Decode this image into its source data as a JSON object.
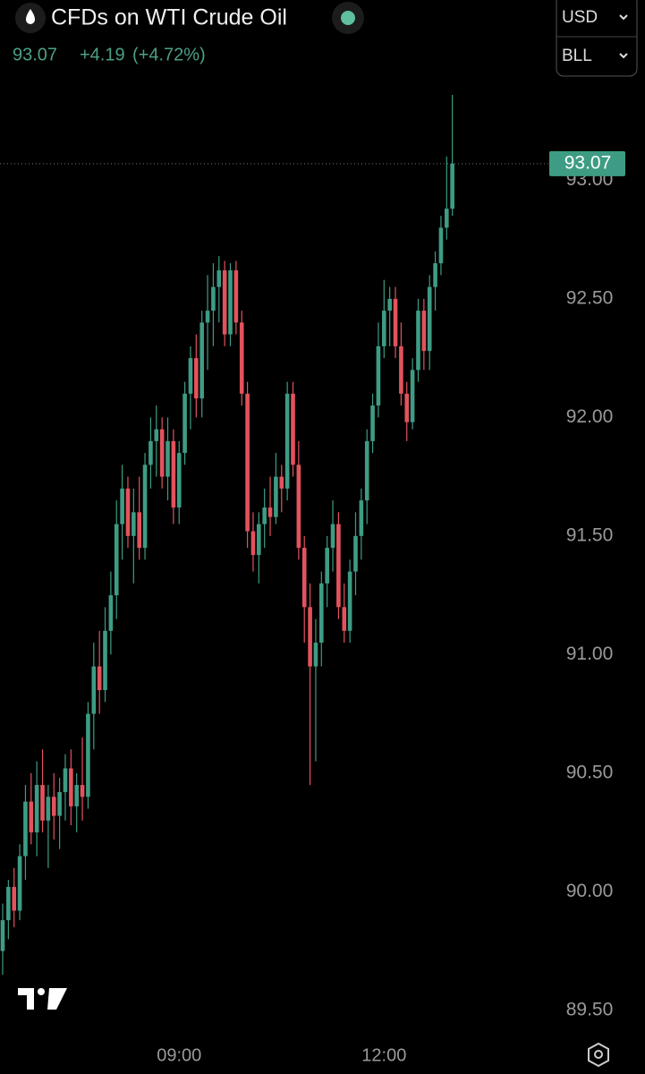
{
  "chart_data": {
    "type": "candlestick",
    "title": "CFDs on WTI Crude Oil",
    "last_price": 93.07,
    "change": "+4.19",
    "change_percent": "(+4.72%)",
    "currency": "USD",
    "unit": "BLL",
    "up_color": "#3e9c84",
    "down_color": "#e2535d",
    "xlim": [
      -0.47,
      95.4
    ],
    "xticks": [
      {
        "value": 31,
        "label": "09:00"
      },
      {
        "value": 67,
        "label": "12:00"
      }
    ],
    "ylim": [
      89.42,
      93.76
    ],
    "yticks": [
      {
        "value": 93,
        "label": "93.00"
      },
      {
        "value": 92.5,
        "label": "92.50"
      },
      {
        "value": 92,
        "label": "92.00"
      },
      {
        "value": 91.5,
        "label": "91.50"
      },
      {
        "value": 91,
        "label": "91.00"
      },
      {
        "value": 90.5,
        "label": "90.50"
      },
      {
        "value": 90,
        "label": "90.00"
      },
      {
        "value": 89.5,
        "label": "89.50"
      }
    ],
    "open": [
      89.75,
      89.88,
      90.02,
      89.92,
      90.15,
      90.38,
      90.25,
      90.45,
      90.3,
      90.4,
      90.32,
      90.42,
      90.52,
      90.36,
      90.45,
      90.4,
      90.75,
      90.95,
      90.85,
      91.1,
      91.25,
      91.55,
      91.7,
      91.5,
      91.6,
      91.45,
      91.8,
      91.9,
      91.95,
      91.75,
      91.9,
      91.62,
      91.85,
      92.1,
      92.25,
      92.08,
      92.4,
      92.45,
      92.55,
      92.62,
      92.35,
      92.62,
      92.4,
      92.1,
      91.52,
      91.42,
      91.55,
      91.62,
      91.58,
      91.75,
      91.7,
      92.1,
      91.8,
      91.45,
      91.2,
      90.95,
      91.05,
      91.3,
      91.45,
      91.55,
      91.2,
      91.1,
      91.35,
      91.5,
      91.65,
      91.9,
      92.05,
      92.3,
      92.45,
      92.5,
      92.3,
      92.1,
      91.98,
      92.2,
      92.45,
      92.28,
      92.55,
      92.65,
      92.8,
      92.88
    ],
    "high": [
      89.95,
      90.05,
      90.1,
      90.2,
      90.45,
      90.5,
      90.55,
      90.6,
      90.45,
      90.5,
      90.48,
      90.58,
      90.6,
      90.5,
      90.65,
      90.8,
      91.05,
      91.1,
      91.2,
      91.35,
      91.65,
      91.8,
      91.75,
      91.7,
      91.75,
      91.85,
      92.0,
      92.05,
      92.0,
      92.0,
      91.95,
      91.9,
      92.15,
      92.3,
      92.35,
      92.45,
      92.6,
      92.65,
      92.68,
      92.66,
      92.65,
      92.66,
      92.45,
      92.15,
      91.6,
      91.6,
      91.7,
      91.75,
      91.85,
      91.8,
      92.15,
      92.15,
      91.9,
      91.5,
      91.3,
      91.15,
      91.35,
      91.5,
      91.65,
      91.6,
      91.3,
      91.4,
      91.6,
      91.7,
      91.95,
      92.1,
      92.4,
      92.58,
      92.55,
      92.55,
      92.4,
      92.15,
      92.25,
      92.5,
      92.5,
      92.6,
      92.7,
      92.85,
      93.1,
      93.36
    ],
    "low": [
      89.65,
      89.8,
      89.85,
      89.88,
      90.05,
      90.2,
      90.15,
      90.25,
      90.1,
      90.22,
      90.18,
      90.3,
      90.28,
      90.25,
      90.3,
      90.35,
      90.6,
      90.75,
      90.8,
      91.0,
      91.15,
      91.4,
      91.45,
      91.3,
      91.4,
      91.4,
      91.7,
      91.75,
      91.7,
      91.65,
      91.55,
      91.55,
      91.8,
      91.95,
      92.0,
      92.0,
      92.2,
      92.3,
      92.4,
      92.3,
      92.3,
      92.35,
      92.05,
      91.45,
      91.35,
      91.3,
      91.45,
      91.5,
      91.55,
      91.6,
      91.65,
      91.75,
      91.4,
      91.05,
      90.45,
      90.55,
      90.95,
      91.2,
      91.35,
      91.15,
      91.05,
      91.05,
      91.25,
      91.4,
      91.55,
      91.85,
      92.0,
      92.25,
      92.3,
      92.25,
      92.05,
      91.9,
      91.95,
      92.15,
      92.2,
      92.2,
      92.45,
      92.6,
      92.75,
      92.85
    ],
    "close": [
      89.88,
      90.02,
      89.92,
      90.15,
      90.38,
      90.25,
      90.45,
      90.3,
      90.4,
      90.32,
      90.42,
      90.52,
      90.36,
      90.45,
      90.4,
      90.75,
      90.95,
      90.85,
      91.1,
      91.25,
      91.55,
      91.7,
      91.5,
      91.6,
      91.45,
      91.8,
      91.9,
      91.95,
      91.75,
      91.9,
      91.62,
      91.85,
      92.1,
      92.25,
      92.08,
      92.4,
      92.45,
      92.55,
      92.62,
      92.35,
      92.62,
      92.4,
      92.1,
      91.52,
      91.42,
      91.55,
      91.62,
      91.58,
      91.75,
      91.7,
      92.1,
      91.8,
      91.45,
      91.2,
      90.95,
      91.05,
      91.3,
      91.45,
      91.55,
      91.2,
      91.1,
      91.35,
      91.5,
      91.65,
      91.9,
      92.05,
      92.3,
      92.45,
      92.5,
      92.3,
      92.1,
      91.98,
      92.2,
      92.45,
      92.28,
      92.55,
      92.65,
      92.8,
      92.88,
      93.07
    ]
  }
}
